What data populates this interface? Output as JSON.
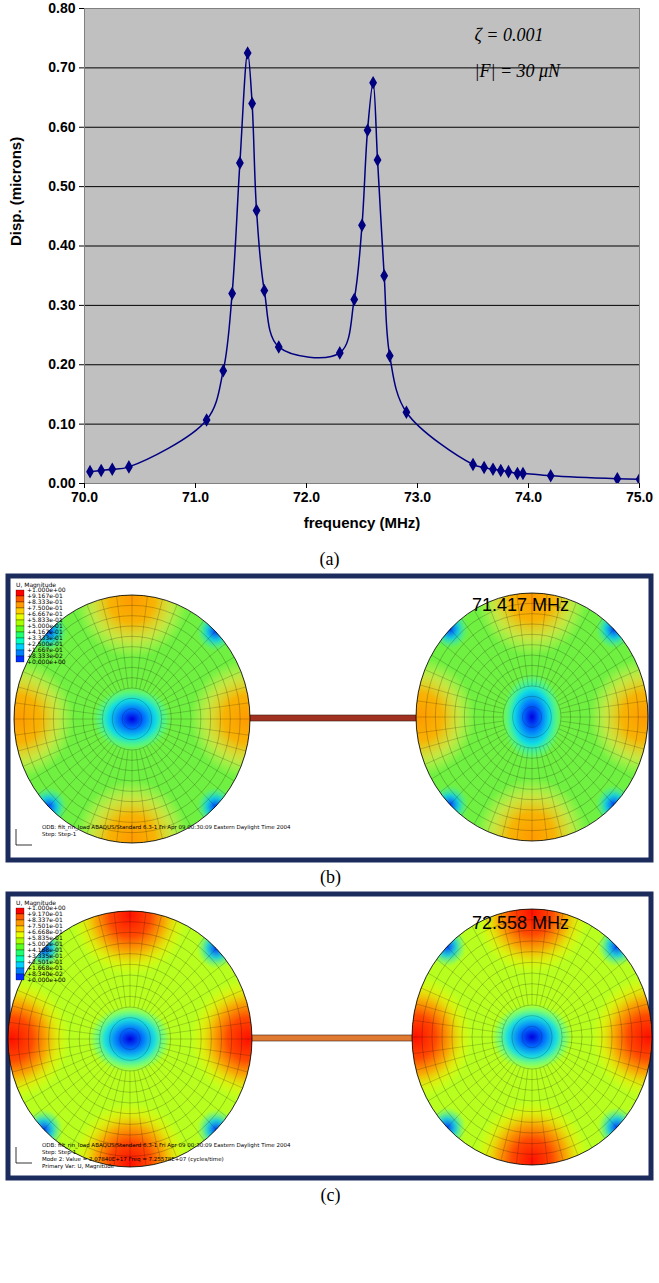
{
  "chart_data": {
    "type": "line",
    "xlabel": "frequency (MHz)",
    "ylabel": "Disp. (microns)",
    "annotations": [
      "ζ = 0.001",
      "|F| = 30 μN"
    ],
    "x": [
      70.05,
      70.15,
      70.25,
      70.4,
      71.1,
      71.25,
      71.33,
      71.4,
      71.47,
      71.51,
      71.55,
      71.62,
      71.75,
      72.3,
      72.43,
      72.5,
      72.55,
      72.6,
      72.64,
      72.7,
      72.75,
      72.9,
      73.5,
      73.6,
      73.68,
      73.75,
      73.82,
      73.9,
      73.95,
      74.2,
      74.8,
      75.0
    ],
    "values": [
      0.02,
      0.022,
      0.024,
      0.028,
      0.107,
      0.19,
      0.32,
      0.54,
      0.725,
      0.64,
      0.46,
      0.325,
      0.23,
      0.22,
      0.31,
      0.435,
      0.595,
      0.675,
      0.545,
      0.35,
      0.215,
      0.12,
      0.032,
      0.027,
      0.024,
      0.022,
      0.02,
      0.017,
      0.017,
      0.013,
      0.008,
      0.007
    ],
    "color": "#000080",
    "marker": "diamond",
    "line_style": "solid",
    "grid": true,
    "xlim": [
      70,
      75
    ],
    "xticks": [
      {
        "value": 70,
        "label": "70.0"
      },
      {
        "value": 71,
        "label": "71.0"
      },
      {
        "value": 72,
        "label": "72.0"
      },
      {
        "value": 73,
        "label": "73.0"
      },
      {
        "value": 74,
        "label": "74.0"
      },
      {
        "value": 75,
        "label": "75.0"
      }
    ],
    "ylim": [
      0,
      0.8
    ],
    "yticks": [
      {
        "value": 0,
        "label": "0.00"
      },
      {
        "value": 0.1,
        "label": "0.10"
      },
      {
        "value": 0.2,
        "label": "0.20"
      },
      {
        "value": 0.3,
        "label": "0.30"
      },
      {
        "value": 0.4,
        "label": "0.40"
      },
      {
        "value": 0.5,
        "label": "0.50"
      },
      {
        "value": 0.6,
        "label": "0.60"
      },
      {
        "value": 0.7,
        "label": "0.70"
      },
      {
        "value": 0.8,
        "label": "0.80"
      }
    ]
  },
  "figure": {
    "chart_label": "(a)",
    "mode_shapes": [
      {
        "label": "(b)",
        "frequency": "71.417 MHz",
        "legend_title": "U, Magnitude",
        "legend_values": [
          "+1.000e+00",
          "+9.167e-01",
          "+8.333e-01",
          "+7.500e-01",
          "+6.667e-01",
          "+5.833e-01",
          "+5.000e-01",
          "+4.167e-01",
          "+3.333e-01",
          "+2.500e-01",
          "+1.667e-01",
          "+8.333e-02",
          "+0.000e+00"
        ],
        "footer": [
          "ODB: filt_rin_load    ABAQUS/Standard 6.3-1    Fri Apr 09 00:30:09 Eastern Daylight Time 2004",
          "Step: Step-1"
        ]
      },
      {
        "label": "(c)",
        "frequency": "72.558 MHz",
        "legend_title": "U, Magnitude",
        "legend_values": [
          "+1.000e+00",
          "+9.170e-01",
          "+8.337e-01",
          "+7.501e-01",
          "+6.668e-01",
          "+5.835e-01",
          "+5.002e-01",
          "+4.168e-01",
          "+3.335e-01",
          "+2.501e-01",
          "+1.668e-01",
          "+8.340e-02",
          "+0.000e+00"
        ],
        "footer": [
          "ODB: filt_rin_load    ABAQUS/Standard 6.3-1    Fri Apr 09 00:30:09 Eastern Daylight Time 2004",
          "Step: Step-1",
          "Mode 2: Value = 2.07840E+17 Freq = 7.25578E+07 (cycles/time)",
          "Primary Var: U, Magnitude"
        ]
      }
    ]
  }
}
